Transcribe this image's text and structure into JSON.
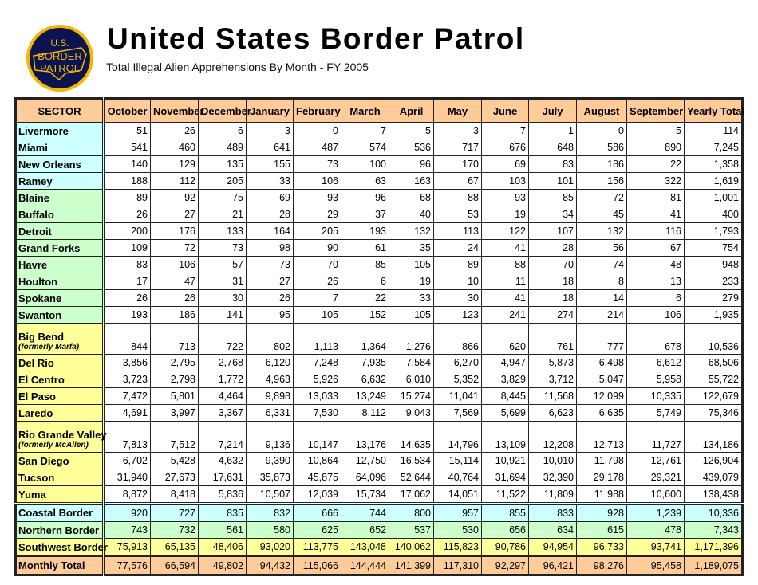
{
  "header": {
    "title": "United States Border Patrol",
    "subtitle": "Total Illegal Alien Apprehensions By Month - FY 2005",
    "logo_text": "U.S. BORDER PATROL"
  },
  "columns": [
    "SECTOR",
    "October",
    "November",
    "December",
    "January",
    "February",
    "March",
    "April",
    "May",
    "June",
    "July",
    "August",
    "September",
    "Yearly Total"
  ],
  "colors": {
    "header": "#ffcc99",
    "coastal": "#ccffff",
    "northern": "#ccffcc",
    "southwest": "#ffff99",
    "total": "#ffcc99"
  },
  "rows": [
    {
      "group": "c",
      "sector": "Livermore",
      "values": [
        "51",
        "26",
        "6",
        "3",
        "0",
        "7",
        "5",
        "3",
        "7",
        "1",
        "0",
        "5",
        "114"
      ]
    },
    {
      "group": "c",
      "sector": "Miami",
      "values": [
        "541",
        "460",
        "489",
        "641",
        "487",
        "574",
        "536",
        "717",
        "676",
        "648",
        "586",
        "890",
        "7,245"
      ]
    },
    {
      "group": "c",
      "sector": "New Orleans",
      "values": [
        "140",
        "129",
        "135",
        "155",
        "73",
        "100",
        "96",
        "170",
        "69",
        "83",
        "186",
        "22",
        "1,358"
      ]
    },
    {
      "group": "c",
      "sector": "Ramey",
      "values": [
        "188",
        "112",
        "205",
        "33",
        "106",
        "63",
        "163",
        "67",
        "103",
        "101",
        "156",
        "322",
        "1,619"
      ]
    },
    {
      "group": "n",
      "sector": "Blaine",
      "values": [
        "89",
        "92",
        "75",
        "69",
        "93",
        "96",
        "68",
        "88",
        "93",
        "85",
        "72",
        "81",
        "1,001"
      ]
    },
    {
      "group": "n",
      "sector": "Buffalo",
      "values": [
        "26",
        "27",
        "21",
        "28",
        "29",
        "37",
        "40",
        "53",
        "19",
        "34",
        "45",
        "41",
        "400"
      ]
    },
    {
      "group": "n",
      "sector": "Detroit",
      "values": [
        "200",
        "176",
        "133",
        "164",
        "205",
        "193",
        "132",
        "113",
        "122",
        "107",
        "132",
        "116",
        "1,793"
      ]
    },
    {
      "group": "n",
      "sector": "Grand Forks",
      "values": [
        "109",
        "72",
        "73",
        "98",
        "90",
        "61",
        "35",
        "24",
        "41",
        "28",
        "56",
        "67",
        "754"
      ]
    },
    {
      "group": "n",
      "sector": "Havre",
      "values": [
        "83",
        "106",
        "57",
        "73",
        "70",
        "85",
        "105",
        "89",
        "88",
        "70",
        "74",
        "48",
        "948"
      ]
    },
    {
      "group": "n",
      "sector": "Houlton",
      "values": [
        "17",
        "47",
        "31",
        "27",
        "26",
        "6",
        "19",
        "10",
        "11",
        "18",
        "8",
        "13",
        "233"
      ]
    },
    {
      "group": "n",
      "sector": "Spokane",
      "values": [
        "26",
        "26",
        "30",
        "26",
        "7",
        "22",
        "33",
        "30",
        "41",
        "18",
        "14",
        "6",
        "279"
      ]
    },
    {
      "group": "n",
      "sector": "Swanton",
      "values": [
        "193",
        "186",
        "141",
        "95",
        "105",
        "152",
        "105",
        "123",
        "241",
        "274",
        "214",
        "106",
        "1,935"
      ]
    },
    {
      "group": "w",
      "sector": "Big Bend",
      "note": "(formerly Marfa)",
      "values": [
        "844",
        "713",
        "722",
        "802",
        "1,113",
        "1,364",
        "1,276",
        "866",
        "620",
        "761",
        "777",
        "678",
        "10,536"
      ]
    },
    {
      "group": "w",
      "sector": "Del Rio",
      "values": [
        "3,856",
        "2,795",
        "2,768",
        "6,120",
        "7,248",
        "7,935",
        "7,584",
        "6,270",
        "4,947",
        "5,873",
        "6,498",
        "6,612",
        "68,506"
      ]
    },
    {
      "group": "w",
      "sector": "El Centro",
      "values": [
        "3,723",
        "2,798",
        "1,772",
        "4,963",
        "5,926",
        "6,632",
        "6,010",
        "5,352",
        "3,829",
        "3,712",
        "5,047",
        "5,958",
        "55,722"
      ]
    },
    {
      "group": "w",
      "sector": "El Paso",
      "values": [
        "7,472",
        "5,801",
        "4,464",
        "9,898",
        "13,033",
        "13,249",
        "15,274",
        "11,041",
        "8,445",
        "11,568",
        "12,099",
        "10,335",
        "122,679"
      ]
    },
    {
      "group": "w",
      "sector": "Laredo",
      "values": [
        "4,691",
        "3,997",
        "3,367",
        "6,331",
        "7,530",
        "8,112",
        "9,043",
        "7,569",
        "5,699",
        "6,623",
        "6,635",
        "5,749",
        "75,346"
      ]
    },
    {
      "group": "w",
      "sector": "Rio Grande Valley",
      "note": "(formerly McAllen)",
      "values": [
        "7,813",
        "7,512",
        "7,214",
        "9,136",
        "10,147",
        "13,176",
        "14,635",
        "14,796",
        "13,109",
        "12,208",
        "12,713",
        "11,727",
        "134,186"
      ]
    },
    {
      "group": "w",
      "sector": "San Diego",
      "values": [
        "6,702",
        "5,428",
        "4,632",
        "9,390",
        "10,864",
        "12,750",
        "16,534",
        "15,114",
        "10,921",
        "10,010",
        "11,798",
        "12,761",
        "126,904"
      ]
    },
    {
      "group": "w",
      "sector": "Tucson",
      "values": [
        "31,940",
        "27,673",
        "17,631",
        "35,873",
        "45,875",
        "64,096",
        "52,644",
        "40,764",
        "31,694",
        "32,390",
        "29,178",
        "29,321",
        "439,079"
      ]
    },
    {
      "group": "w",
      "sector": "Yuma",
      "values": [
        "8,872",
        "8,418",
        "5,836",
        "10,507",
        "12,039",
        "15,734",
        "17,062",
        "14,051",
        "11,522",
        "11,809",
        "11,988",
        "10,600",
        "138,438"
      ]
    },
    {
      "group": "tc",
      "sector": "Coastal Border",
      "values": [
        "920",
        "727",
        "835",
        "832",
        "666",
        "744",
        "800",
        "957",
        "855",
        "833",
        "928",
        "1,239",
        "10,336"
      ]
    },
    {
      "group": "tn",
      "sector": "Northern Border",
      "values": [
        "743",
        "732",
        "561",
        "580",
        "625",
        "652",
        "537",
        "530",
        "656",
        "634",
        "615",
        "478",
        "7,343"
      ]
    },
    {
      "group": "tw",
      "sector": "Southwest Border",
      "values": [
        "75,913",
        "65,135",
        "48,406",
        "93,020",
        "113,775",
        "143,048",
        "140,062",
        "115,823",
        "90,786",
        "94,954",
        "96,733",
        "93,741",
        "1,171,396"
      ]
    },
    {
      "group": "tt",
      "sector": "Monthly Total",
      "values": [
        "77,576",
        "66,594",
        "49,802",
        "94,432",
        "115,066",
        "144,444",
        "141,399",
        "117,310",
        "92,297",
        "96,421",
        "98,276",
        "95,458",
        "1,189,075"
      ]
    }
  ]
}
